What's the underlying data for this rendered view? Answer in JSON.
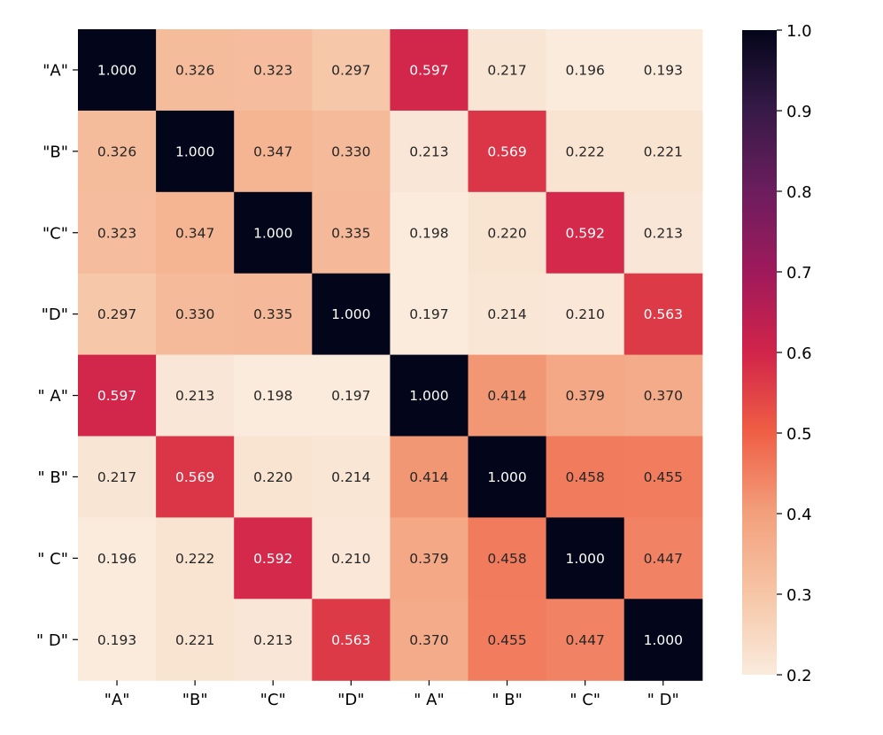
{
  "chart_data": {
    "type": "heatmap",
    "title": "",
    "xlabel": "",
    "ylabel": "",
    "x_labels": [
      "\"A\"",
      "\"B\"",
      "\"C\"",
      "\"D\"",
      "\" A\"",
      "\" B\"",
      "\" C\"",
      "\" D\""
    ],
    "y_labels": [
      "\"A\"",
      "\"B\"",
      "\"C\"",
      "\"D\"",
      "\" A\"",
      "\" B\"",
      "\" C\"",
      "\" D\""
    ],
    "values": [
      [
        1.0,
        0.326,
        0.323,
        0.297,
        0.597,
        0.217,
        0.196,
        0.193
      ],
      [
        0.326,
        1.0,
        0.347,
        0.33,
        0.213,
        0.569,
        0.222,
        0.221
      ],
      [
        0.323,
        0.347,
        1.0,
        0.335,
        0.198,
        0.22,
        0.592,
        0.213
      ],
      [
        0.297,
        0.33,
        0.335,
        1.0,
        0.197,
        0.214,
        0.21,
        0.563
      ],
      [
        0.597,
        0.213,
        0.198,
        0.197,
        1.0,
        0.414,
        0.379,
        0.37
      ],
      [
        0.217,
        0.569,
        0.22,
        0.214,
        0.414,
        1.0,
        0.458,
        0.455
      ],
      [
        0.196,
        0.222,
        0.592,
        0.21,
        0.379,
        0.458,
        1.0,
        0.447
      ],
      [
        0.193,
        0.221,
        0.213,
        0.563,
        0.37,
        0.455,
        0.447,
        1.0
      ]
    ],
    "value_format": "0.000",
    "colormap": "rocket_r",
    "colorbar": {
      "range": [
        0.2,
        1.0
      ],
      "ticks": [
        1.0,
        0.9,
        0.8,
        0.7,
        0.6,
        0.5,
        0.4,
        0.3,
        0.2
      ],
      "tick_labels": [
        "1.0",
        "0.9",
        "0.8",
        "0.7",
        "0.6",
        "0.5",
        "0.4",
        "0.3",
        "0.2"
      ]
    },
    "colormap_stops": [
      {
        "v": 0.0,
        "color": "#faebdd"
      },
      {
        "v": 0.12,
        "color": "#f6c7a8"
      },
      {
        "v": 0.25,
        "color": "#f3a07c"
      },
      {
        "v": 0.38,
        "color": "#ef5d44"
      },
      {
        "v": 0.5,
        "color": "#d1244a"
      },
      {
        "v": 0.62,
        "color": "#a11a5b"
      },
      {
        "v": 0.75,
        "color": "#6c1d5e"
      },
      {
        "v": 0.88,
        "color": "#351a47"
      },
      {
        "v": 1.0,
        "color": "#03051a"
      }
    ],
    "text_colors": {
      "dark": "#262626",
      "light": "#ffffff"
    }
  }
}
